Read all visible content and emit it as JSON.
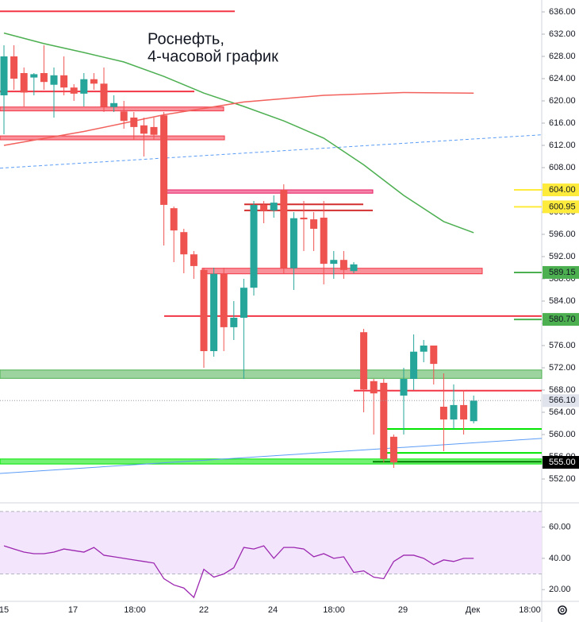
{
  "chart_data": {
    "type": "candlestick",
    "title_lines": [
      "Роснефть,",
      "4-часовой график"
    ],
    "ylim": [
      548,
      638
    ],
    "yticks": [
      {
        "value": 552,
        "label": "552.00"
      },
      {
        "value": 556,
        "label": "556.00"
      },
      {
        "value": 560,
        "label": "560.00"
      },
      {
        "value": 564,
        "label": "564.00"
      },
      {
        "value": 568,
        "label": "568.00"
      },
      {
        "value": 572,
        "label": "572.00"
      },
      {
        "value": 576,
        "label": "576.00"
      },
      {
        "value": 580,
        "label": "580.00"
      },
      {
        "value": 584,
        "label": "584.00"
      },
      {
        "value": 588,
        "label": "588.00"
      },
      {
        "value": 592,
        "label": "592.00"
      },
      {
        "value": 596,
        "label": "596.00"
      },
      {
        "value": 600,
        "label": "600.00"
      },
      {
        "value": 604,
        "label": "604.00"
      },
      {
        "value": 608,
        "label": "608.00"
      },
      {
        "value": 612,
        "label": "612.00"
      },
      {
        "value": 616,
        "label": "616.00"
      },
      {
        "value": 620,
        "label": "620.00"
      },
      {
        "value": 624,
        "label": "624.00"
      },
      {
        "value": 628,
        "label": "628.00"
      },
      {
        "value": 632,
        "label": "632.00"
      },
      {
        "value": 636,
        "label": "636.00"
      }
    ],
    "x_labels": [
      "15",
      "17",
      "18:00",
      "22",
      "24",
      "18:00",
      "29",
      "Дек",
      "18:00"
    ],
    "up_color": "#26a69a",
    "down_color": "#ef5350",
    "open": [
      621,
      628,
      625,
      624.2,
      625,
      622.9,
      624.6,
      622.4,
      621.3,
      623.9,
      623.1,
      618.9,
      618.1,
      617,
      615.6,
      615.3,
      617.4,
      600.7,
      596.4,
      592.4,
      589.6,
      575,
      588.9,
      579.3,
      581,
      586.4,
      601.3,
      600.3,
      604,
      589.9,
      599,
      598.7,
      599,
      590.7,
      591.4,
      589.4,
      578.4,
      569.6,
      569.3,
      559.6,
      567,
      570,
      574.9,
      576,
      565,
      562.7,
      565.3,
      562.4
    ],
    "high": [
      630,
      630,
      626,
      625,
      630,
      626,
      628,
      623,
      625,
      625,
      626,
      621,
      620,
      618,
      617,
      617,
      618,
      601,
      597,
      593,
      590,
      590,
      590,
      584,
      588,
      602,
      602,
      603,
      605,
      600,
      602,
      600,
      602,
      593,
      593,
      591,
      579,
      570,
      570,
      560,
      572,
      578,
      577,
      576,
      571,
      569,
      568,
      567
    ],
    "low": [
      614,
      622,
      619,
      621,
      622,
      617,
      621,
      620,
      619,
      622,
      618,
      618,
      615,
      613,
      610,
      613,
      594,
      591,
      589,
      588,
      572,
      574,
      575,
      577,
      570,
      585,
      598,
      599,
      589,
      586,
      593,
      593,
      587,
      588,
      588,
      589,
      564,
      560,
      555,
      554,
      560,
      568,
      573,
      569,
      557,
      561,
      560,
      562
    ],
    "close": [
      628,
      624,
      621.5,
      624.8,
      623.4,
      624.6,
      622.4,
      621.3,
      623.9,
      623.1,
      618.9,
      619.6,
      616.4,
      615.3,
      614.1,
      613.9,
      601.3,
      596.7,
      592.4,
      590.3,
      575,
      588.9,
      579.3,
      581,
      586.4,
      601.3,
      600.3,
      601.7,
      589.9,
      598.9,
      598.7,
      597,
      590.7,
      591.4,
      589.6,
      590.6,
      568.1,
      567.4,
      555.6,
      555,
      570,
      574.9,
      576,
      572.7,
      562.7,
      565.3,
      562.7,
      566.1
    ],
    "moving_averages": [
      {
        "color": "#4caf50",
        "x": [
          0,
          4,
          8,
          12,
          16,
          20,
          24,
          28,
          32,
          36,
          40,
          44,
          47
        ],
        "values": [
          632.2,
          630.3,
          628.7,
          627,
          624.4,
          621.4,
          619,
          616.4,
          613.3,
          608.5,
          603,
          598.3,
          596.3
        ]
      },
      {
        "color": "#f2615c",
        "x": [
          0,
          8,
          16,
          24,
          32,
          40,
          47
        ],
        "values": [
          612,
          614.5,
          617.5,
          619.8,
          621,
          621.5,
          621.4
        ]
      }
    ],
    "trendlines": [
      {
        "color": "#5b9cf6",
        "dashed": true,
        "from": 607.9,
        "to": 613.9
      },
      {
        "color": "#5b9cf6",
        "dashed": false,
        "from": 553,
        "to": 559.3
      }
    ],
    "levels": [
      {
        "kind": "line",
        "price": 636.1,
        "color": "#f23645"
      },
      {
        "kind": "line",
        "price": 621.7,
        "color": "#f23645"
      },
      {
        "kind": "band",
        "from": 618.9,
        "to": 618.2,
        "color": "#f23645"
      },
      {
        "kind": "band",
        "from": 613.7,
        "to": 613,
        "color": "#f23645"
      },
      {
        "kind": "band",
        "from": 604,
        "to": 603.4,
        "color": "#e91e63"
      },
      {
        "kind": "line",
        "price": 601.4,
        "color": "#d32f2f"
      },
      {
        "kind": "line",
        "price": 600.3,
        "color": "#d32f2f"
      },
      {
        "kind": "band",
        "from": 589.9,
        "to": 588.9,
        "color": "#f23645"
      },
      {
        "kind": "line",
        "price": 581.3,
        "color": "#f23645"
      },
      {
        "kind": "band",
        "from": 571.6,
        "to": 570.1,
        "color": "#4caf50"
      },
      {
        "kind": "line",
        "price": 567.9,
        "color": "#f23645"
      },
      {
        "kind": "line",
        "price": 561,
        "color": "#00e600"
      },
      {
        "kind": "line",
        "price": 556.7,
        "color": "#00e600"
      },
      {
        "kind": "line",
        "price": 555.1,
        "color": "#000000"
      },
      {
        "kind": "band",
        "from": 555.6,
        "to": 554.7,
        "color": "#00e600"
      }
    ],
    "price_labels": [
      {
        "value": 604,
        "label": "604.00",
        "color": "#ffeb3b",
        "text_color": "#131722"
      },
      {
        "value": 600.95,
        "label": "600.95",
        "color": "#ffeb3b",
        "text_color": "#131722"
      },
      {
        "value": 589.15,
        "label": "589.15",
        "color": "#4caf50",
        "text_color": "#131722"
      },
      {
        "value": 580.7,
        "label": "580.70",
        "color": "#4caf50",
        "text_color": "#131722"
      },
      {
        "value": 566.1,
        "label": "566.10",
        "color": "#e0e3eb",
        "text_color": "#131722"
      },
      {
        "value": 555,
        "label": "555.00",
        "color": "#000000",
        "text_color": "#ffffff"
      }
    ],
    "rsi": {
      "color": "#9c27b0",
      "band_color": "#f3e5fc",
      "band": [
        30,
        70
      ],
      "ylim": [
        13,
        74
      ],
      "yticks": [
        {
          "value": 20,
          "label": "20.00"
        },
        {
          "value": 40,
          "label": "40.00"
        },
        {
          "value": 60,
          "label": "60.00"
        }
      ],
      "values": [
        48,
        46,
        44,
        43,
        43,
        44,
        46,
        45,
        44,
        47,
        42,
        41,
        40,
        39,
        38,
        37,
        27,
        23,
        21,
        15,
        33,
        28,
        30,
        34,
        47,
        46,
        48,
        40,
        47,
        47,
        46,
        41,
        43,
        40,
        41,
        31,
        32,
        28,
        27,
        38,
        42,
        42,
        40,
        36,
        39,
        38,
        40,
        40
      ]
    }
  }
}
